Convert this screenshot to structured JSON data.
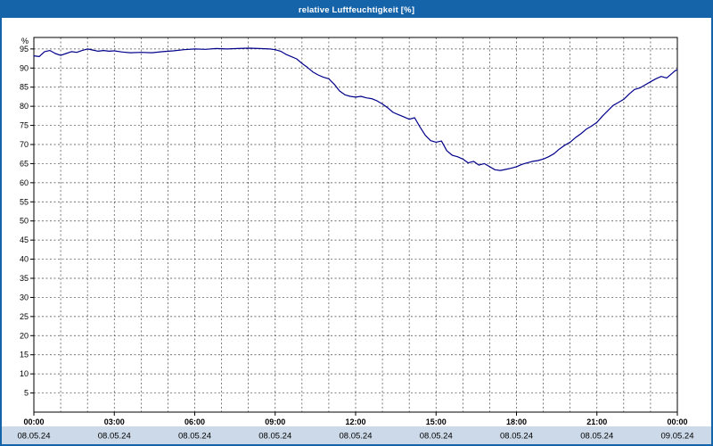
{
  "window": {
    "title": "relative Luftfeuchtigkeit [%]"
  },
  "colors": {
    "frame": "#1563a8",
    "titlebar_bg": "#1563a8",
    "titlebar_text": "#ffffff",
    "plot_bg": "#ffffff",
    "plot_border": "#000000",
    "grid": "#444444",
    "axis_text": "#000000",
    "line": "#00008b",
    "date_strip_bg": "#ccd9e8"
  },
  "chart_data": {
    "type": "line",
    "title": "relative Luftfeuchtigkeit [%]",
    "ylabel": "%",
    "ylim": [
      0,
      98
    ],
    "ytick_step": 5,
    "yticks": [
      5,
      10,
      15,
      20,
      25,
      30,
      35,
      40,
      45,
      50,
      55,
      60,
      65,
      70,
      75,
      80,
      85,
      90,
      95
    ],
    "x_hours_range": [
      0,
      24
    ],
    "xtick_hours": [
      0,
      3,
      6,
      9,
      12,
      15,
      18,
      21,
      24
    ],
    "xtick_labels": [
      "00:00",
      "03:00",
      "06:00",
      "09:00",
      "12:00",
      "15:00",
      "18:00",
      "21:00",
      "00:00"
    ],
    "date_labels": [
      "08.05.24",
      "08.05.24",
      "08.05.24",
      "08.05.24",
      "08.05.24",
      "08.05.24",
      "08.05.24",
      "08.05.24",
      "09.05.24"
    ],
    "grid": "dashed",
    "legend": "none",
    "series": [
      {
        "name": "relative Luftfeuchtigkeit [%]",
        "points": [
          [
            0,
            93.2
          ],
          [
            0.2,
            93.0
          ],
          [
            0.4,
            94.3
          ],
          [
            0.6,
            94.6
          ],
          [
            0.8,
            93.8
          ],
          [
            1,
            93.3
          ],
          [
            1.2,
            93.8
          ],
          [
            1.4,
            94.3
          ],
          [
            1.6,
            94.1
          ],
          [
            1.8,
            94.6
          ],
          [
            2,
            95.0
          ],
          [
            2.2,
            94.7
          ],
          [
            2.4,
            94.4
          ],
          [
            2.6,
            94.6
          ],
          [
            2.8,
            94.4
          ],
          [
            3,
            94.5
          ],
          [
            3.3,
            94.2
          ],
          [
            3.6,
            94.0
          ],
          [
            4,
            94.1
          ],
          [
            4.4,
            94.0
          ],
          [
            4.8,
            94.3
          ],
          [
            5.2,
            94.5
          ],
          [
            5.6,
            94.8
          ],
          [
            6,
            95.0
          ],
          [
            6.4,
            94.9
          ],
          [
            6.8,
            95.1
          ],
          [
            7.2,
            95.0
          ],
          [
            7.6,
            95.1
          ],
          [
            8,
            95.2
          ],
          [
            8.4,
            95.1
          ],
          [
            8.8,
            95.0
          ],
          [
            9,
            94.8
          ],
          [
            9.2,
            94.4
          ],
          [
            9.4,
            93.6
          ],
          [
            9.6,
            93.0
          ],
          [
            9.8,
            92.4
          ],
          [
            10,
            91.2
          ],
          [
            10.2,
            90.2
          ],
          [
            10.4,
            89.0
          ],
          [
            10.6,
            88.2
          ],
          [
            10.8,
            87.6
          ],
          [
            11,
            87.2
          ],
          [
            11.2,
            85.8
          ],
          [
            11.4,
            84.0
          ],
          [
            11.6,
            83.0
          ],
          [
            11.8,
            82.6
          ],
          [
            12,
            82.4
          ],
          [
            12.2,
            82.6
          ],
          [
            12.4,
            82.2
          ],
          [
            12.6,
            82.0
          ],
          [
            12.8,
            81.4
          ],
          [
            13,
            80.6
          ],
          [
            13.2,
            79.6
          ],
          [
            13.4,
            78.4
          ],
          [
            13.6,
            77.8
          ],
          [
            13.8,
            77.2
          ],
          [
            14,
            76.6
          ],
          [
            14.2,
            77.0
          ],
          [
            14.4,
            74.6
          ],
          [
            14.6,
            72.4
          ],
          [
            14.8,
            71.0
          ],
          [
            15,
            70.6
          ],
          [
            15.2,
            70.9
          ],
          [
            15.4,
            68.4
          ],
          [
            15.6,
            67.2
          ],
          [
            15.8,
            66.8
          ],
          [
            16,
            66.2
          ],
          [
            16.2,
            65.2
          ],
          [
            16.4,
            65.6
          ],
          [
            16.6,
            64.6
          ],
          [
            16.8,
            65.0
          ],
          [
            17,
            64.2
          ],
          [
            17.2,
            63.4
          ],
          [
            17.4,
            63.2
          ],
          [
            17.6,
            63.5
          ],
          [
            17.8,
            63.8
          ],
          [
            18,
            64.2
          ],
          [
            18.2,
            64.8
          ],
          [
            18.4,
            65.2
          ],
          [
            18.6,
            65.6
          ],
          [
            18.8,
            65.8
          ],
          [
            19,
            66.2
          ],
          [
            19.2,
            66.8
          ],
          [
            19.4,
            67.6
          ],
          [
            19.6,
            68.8
          ],
          [
            19.8,
            69.8
          ],
          [
            20,
            70.6
          ],
          [
            20.2,
            71.8
          ],
          [
            20.4,
            72.8
          ],
          [
            20.6,
            74.0
          ],
          [
            20.8,
            74.8
          ],
          [
            21,
            75.8
          ],
          [
            21.2,
            77.4
          ],
          [
            21.4,
            78.8
          ],
          [
            21.6,
            80.2
          ],
          [
            21.8,
            81.0
          ],
          [
            22,
            81.8
          ],
          [
            22.2,
            83.2
          ],
          [
            22.4,
            84.4
          ],
          [
            22.6,
            84.8
          ],
          [
            22.8,
            85.6
          ],
          [
            23,
            86.4
          ],
          [
            23.2,
            87.2
          ],
          [
            23.4,
            87.8
          ],
          [
            23.6,
            87.4
          ],
          [
            23.8,
            88.6
          ],
          [
            23.9,
            89.2
          ],
          [
            24,
            89.6
          ]
        ]
      }
    ]
  }
}
